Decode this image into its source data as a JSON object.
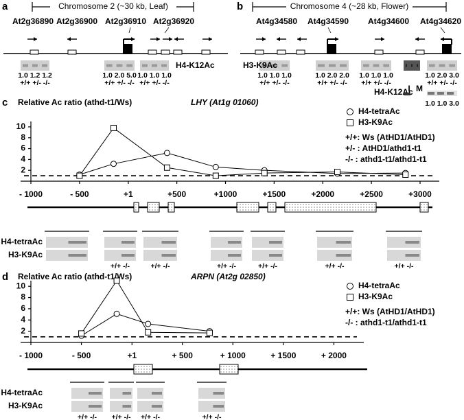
{
  "panel_a": {
    "label": "a",
    "title": "Chromosome 2 (~30 kb, Leaf)",
    "genes": [
      "At2g36890",
      "At2g36900",
      "At2g36910",
      "At2g36920"
    ],
    "antibody": "H4-K12Ac",
    "ratios": [
      "1.0 1.2 1.2",
      "1.0 2.0 5.0",
      "1.0 1.0 1.0"
    ],
    "genotypes": [
      "+/+ +/- -/-",
      "+/+ +/- -/-",
      "+/+ +/- -/-"
    ]
  },
  "panel_b": {
    "label": "b",
    "title": "Chromosome 4 (~28 kb, Flower)",
    "genes": [
      "At4g34580",
      "At4g34590",
      "At4g34600",
      "At4g34620"
    ],
    "antibody": "H3-K9Ac",
    "ratios": [
      "1.0 1.0 1.0",
      "1.0 2.0 2.0",
      "1.0 1.0 1.0",
      "1.0 2.0 3.0"
    ],
    "genotypes": [
      "+/+ +/- -/-",
      "+/+ +/- -/-",
      "+/+ +/- -/-",
      "+/+ +/- -/-"
    ],
    "lanes": [
      "I",
      "M"
    ],
    "antibody2": "H4-K12Ac",
    "ratios2": "1.0 1.0 3.0"
  },
  "chart_data": [
    {
      "type": "line",
      "label": "c",
      "ylabel": "Relative Ac ratio (athd-t1/Ws)",
      "title": "LHY (At1g 01060)",
      "x": [
        -500,
        -150,
        400,
        900,
        1400,
        2150,
        2850
      ],
      "series": [
        {
          "name": "H4-tetraAc",
          "marker": "circle",
          "color": "#000000",
          "values": [
            1.2,
            3.2,
            5.2,
            2.6,
            2.0,
            1.4,
            1.5
          ]
        },
        {
          "name": "H3-K9Ac",
          "marker": "square",
          "color": "#000000",
          "values": [
            1.0,
            9.8,
            2.5,
            1.0,
            1.5,
            1.7,
            1.2
          ]
        }
      ],
      "notes": [
        "+/+: Ws (AtHD1/AtHD1)",
        "+/- : AtHD1/athd1-t1",
        "-/- : athd1-t1/athd1-t1"
      ],
      "xlim": [
        -1000,
        3000
      ],
      "ylim": [
        0,
        11
      ],
      "xticks": [
        {
          "value": -1000,
          "label": "- 1000"
        },
        {
          "value": -500,
          "label": "- 500"
        },
        {
          "value": 1,
          "label": "+1"
        },
        {
          "value": 500,
          "label": "+500"
        },
        {
          "value": 1000,
          "label": "+1000"
        },
        {
          "value": 1500,
          "label": "+1500"
        },
        {
          "value": 2000,
          "label": "+2000"
        },
        {
          "value": 2500,
          "label": "+2500"
        },
        {
          "value": 3000,
          "label": "+3000"
        }
      ],
      "yticks": [
        2,
        4,
        6,
        8,
        10
      ],
      "hline": 1,
      "gel_rows": [
        "H4-tetraAc",
        "H3-K9Ac"
      ],
      "genotypes": [
        "+/+ -/-",
        "+/+ -/-",
        "+/+ -/-",
        "+/+ -/-",
        "+/+ -/-",
        "+/+ -/-"
      ]
    },
    {
      "type": "line",
      "label": "d",
      "ylabel": "Relative Ac ratio (athd-t1/Ws)",
      "title": "ARPN (At2g 02850)",
      "x": [
        -500,
        -150,
        160,
        770
      ],
      "series": [
        {
          "name": "H4-tetraAc",
          "marker": "circle",
          "color": "#000000",
          "values": [
            1.2,
            5.1,
            3.3,
            2.0
          ]
        },
        {
          "name": "H3-K9Ac",
          "marker": "square",
          "color": "#000000",
          "values": [
            1.6,
            11.0,
            1.8,
            1.7
          ]
        }
      ],
      "notes": [
        "+/+: Ws (AtHD1/AtHD1)",
        "-/- : athd1-t1/athd1-t1"
      ],
      "xlim": [
        -1000,
        2500
      ],
      "ylim": [
        0,
        11
      ],
      "xticks": [
        {
          "value": -1000,
          "label": "- 1000"
        },
        {
          "value": -500,
          "label": "- 500"
        },
        {
          "value": 1,
          "label": "+1"
        },
        {
          "value": 500,
          "label": "+ 500"
        },
        {
          "value": 1000,
          "label": "+ 1000"
        },
        {
          "value": 1500,
          "label": "+ 1500"
        },
        {
          "value": 2000,
          "label": "+ 2000"
        }
      ],
      "yticks": [
        2,
        4,
        6,
        8,
        10
      ],
      "hline": 1,
      "gel_rows": [
        "H4-tetraAc",
        "H3-K9Ac"
      ],
      "genotypes": [
        "+/+ -/-",
        "+/+ -/-",
        "+/+ -/-",
        "+/+ -/-"
      ]
    }
  ]
}
